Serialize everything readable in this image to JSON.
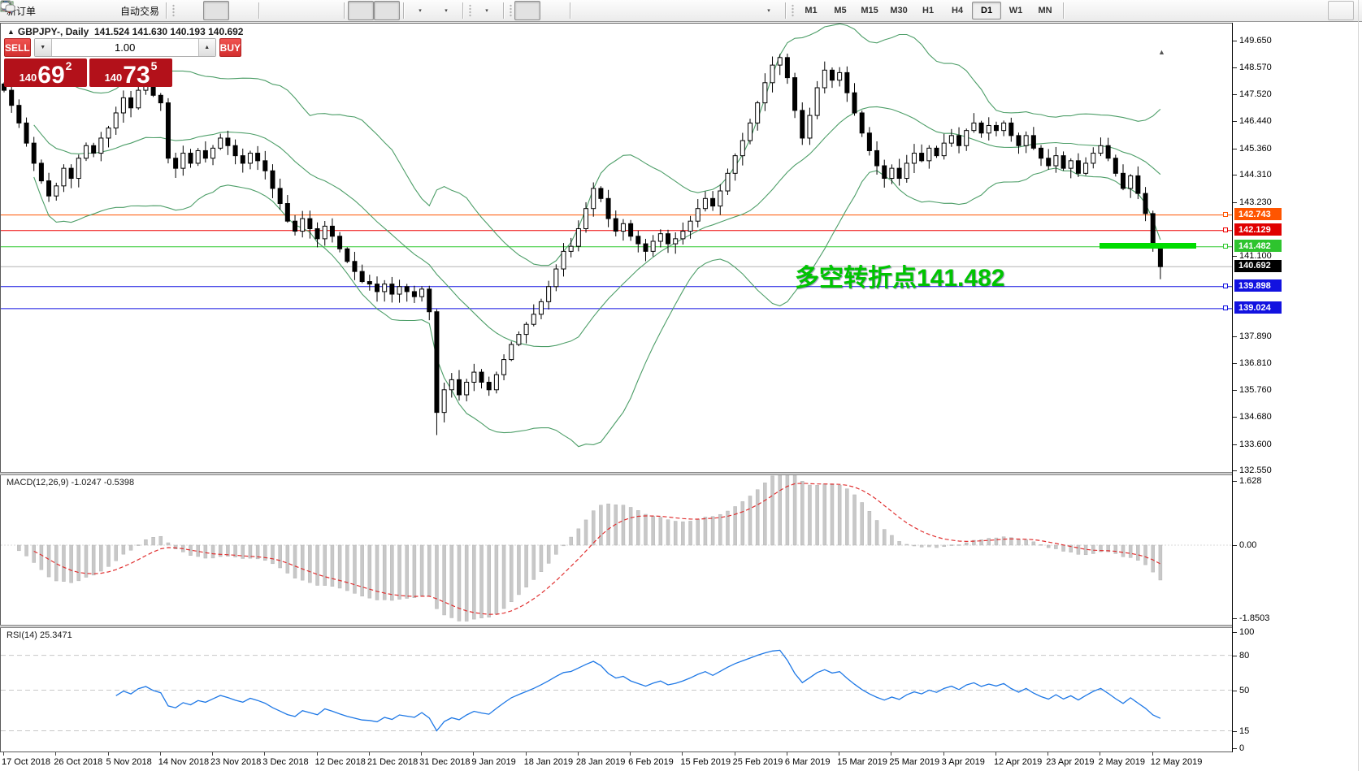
{
  "toolbar": {
    "new_order_label": "新订单",
    "autotrade_label": "自动交易",
    "timeframes": [
      "M1",
      "M5",
      "M15",
      "M30",
      "H1",
      "H4",
      "D1",
      "W1",
      "MN"
    ],
    "active_timeframe": "D1",
    "icons": {
      "caret_down": "▼",
      "caret_up": "▲",
      "small_caret": "▾"
    }
  },
  "chart": {
    "collapse_marker": "▲",
    "symbol_label": "GBPJPY-, Daily",
    "ohlc_text": "141.524 141.630 140.193 140.692",
    "shift_marker": "▲"
  },
  "trade": {
    "sell_label": "SELL",
    "buy_label": "BUY",
    "volume": "1.00",
    "down_arrow": "▼",
    "up_arrow": "▲",
    "sell_base": "140",
    "sell_big": "69",
    "sell_sup": "2",
    "buy_base": "140",
    "buy_big": "73",
    "buy_sup": "5"
  },
  "price_axis": {
    "ticks": [
      "149.650",
      "148.570",
      "147.520",
      "146.440",
      "145.360",
      "144.310",
      "143.230",
      "141.100",
      "137.890",
      "136.810",
      "135.760",
      "134.680",
      "133.600",
      "132.550"
    ]
  },
  "lines": [
    {
      "label": "142.743",
      "price": 142.743,
      "color": "#ff5500",
      "tag_bg": "#ff5500",
      "tag_fg": "#ffffff",
      "handle": true
    },
    {
      "label": "142.129",
      "price": 142.129,
      "color": "#ee0000",
      "tag_bg": "#e00000",
      "tag_fg": "#ffffff",
      "handle": true
    },
    {
      "label": "141.482",
      "price": 141.482,
      "color": "#2ec82e",
      "tag_bg": "#2ec42e",
      "tag_fg": "#ffffff",
      "handle": true
    },
    {
      "label": "140.692",
      "price": 140.692,
      "color": "#b4b4b4",
      "tag_bg": "#000000",
      "tag_fg": "#ffffff",
      "handle": false
    },
    {
      "label": "139.898",
      "price": 139.898,
      "color": "#1212e0",
      "tag_bg": "#1212e0",
      "tag_fg": "#ffffff",
      "handle": true
    },
    {
      "label": "139.024",
      "price": 139.024,
      "color": "#1212e0",
      "tag_bg": "#1212e0",
      "tag_fg": "#ffffff",
      "handle": true
    }
  ],
  "annotation": {
    "text": "多空转折点141.482"
  },
  "highlight_bar": {
    "price": 141.482,
    "color": "#00dc00"
  },
  "macd": {
    "label": "MACD(12,26,9) -1.0247 -0.5398",
    "axis": [
      {
        "text": "1.628",
        "value": 1.628
      },
      {
        "text": "0.00",
        "value": 0
      },
      {
        "text": "-1.8503",
        "value": -1.8503
      }
    ]
  },
  "rsi": {
    "label": "RSI(14) 25.3471",
    "axis": [
      {
        "text": "100",
        "value": 100
      },
      {
        "text": "80",
        "value": 80
      },
      {
        "text": "50",
        "value": 50
      },
      {
        "text": "15",
        "value": 15
      },
      {
        "text": "0",
        "value": 0
      }
    ],
    "levels": [
      80,
      50,
      15
    ]
  },
  "dates": [
    "17 Oct 2018",
    "26 Oct 2018",
    "5 Nov 2018",
    "14 Nov 2018",
    "23 Nov 2018",
    "3 Dec 2018",
    "12 Dec 2018",
    "21 Dec 2018",
    "31 Dec 2018",
    "9 Jan 2019",
    "18 Jan 2019",
    "28 Jan 2019",
    "6 Feb 2019",
    "15 Feb 2019",
    "25 Feb 2019",
    "6 Mar 2019",
    "15 Mar 2019",
    "25 Mar 2019",
    "3 Apr 2019",
    "12 Apr 2019",
    "23 Apr 2019",
    "2 May 2019",
    "12 May 2019"
  ],
  "chart_data": {
    "type": "candlestick",
    "symbol": "GBPJPY",
    "timeframe": "Daily",
    "price_range": [
      132.5,
      150.35
    ],
    "closes": [
      147.7,
      147.1,
      146.4,
      145.6,
      144.8,
      144.1,
      143.5,
      143.9,
      144.6,
      144.2,
      145.0,
      145.5,
      145.2,
      145.8,
      146.2,
      146.8,
      147.4,
      147.0,
      147.7,
      148.0,
      147.5,
      147.2,
      145.0,
      144.6,
      145.2,
      144.8,
      145.3,
      145.0,
      145.4,
      145.8,
      145.5,
      145.1,
      144.8,
      145.2,
      144.9,
      144.5,
      143.8,
      143.2,
      142.5,
      142.1,
      142.6,
      142.2,
      141.8,
      142.3,
      141.9,
      141.4,
      140.9,
      140.5,
      140.1,
      140.0,
      139.7,
      140.0,
      139.6,
      139.9,
      139.7,
      139.5,
      139.8,
      138.9,
      134.9,
      135.8,
      136.2,
      135.6,
      136.1,
      136.5,
      136.1,
      135.8,
      136.4,
      137.0,
      137.6,
      138.0,
      138.4,
      138.8,
      139.3,
      139.9,
      140.6,
      141.3,
      141.5,
      142.2,
      143.0,
      143.8,
      143.4,
      142.6,
      142.1,
      142.4,
      141.9,
      141.6,
      141.3,
      141.7,
      142.0,
      141.6,
      141.8,
      142.1,
      142.5,
      143.0,
      143.4,
      143.1,
      143.7,
      144.4,
      145.1,
      145.7,
      146.4,
      147.2,
      148.0,
      148.7,
      149.0,
      148.2,
      146.9,
      145.8,
      146.7,
      147.8,
      148.5,
      148.1,
      148.4,
      147.6,
      146.8,
      146.0,
      145.3,
      144.7,
      144.2,
      144.6,
      144.2,
      144.8,
      145.2,
      144.9,
      145.4,
      145.1,
      145.6,
      145.9,
      145.5,
      146.1,
      146.4,
      146.0,
      146.3,
      146.1,
      146.4,
      145.9,
      145.5,
      145.9,
      145.4,
      145.0,
      144.7,
      145.1,
      144.6,
      144.9,
      144.4,
      144.8,
      145.2,
      145.5,
      145.0,
      144.4,
      143.8,
      144.3,
      143.6,
      142.8,
      141.52,
      140.692
    ],
    "overrides": {
      "58": {
        "h": 139.0,
        "l": 134.0
      },
      "155": {
        "o": 141.524,
        "h": 141.63,
        "l": 140.193,
        "c": 140.692
      }
    },
    "bollinger": {
      "period": 20,
      "deviation": 2,
      "color": "#4d9e68"
    },
    "macd_params": {
      "fast": 12,
      "slow": 26,
      "signal": 9,
      "hist_color": "#c8c8c8",
      "signal_color": "#e03030"
    },
    "rsi_params": {
      "period": 14,
      "color": "#1e78e6"
    },
    "bull_color": "#ffffff",
    "bear_color": "#000000",
    "outline_color": "#000000"
  }
}
